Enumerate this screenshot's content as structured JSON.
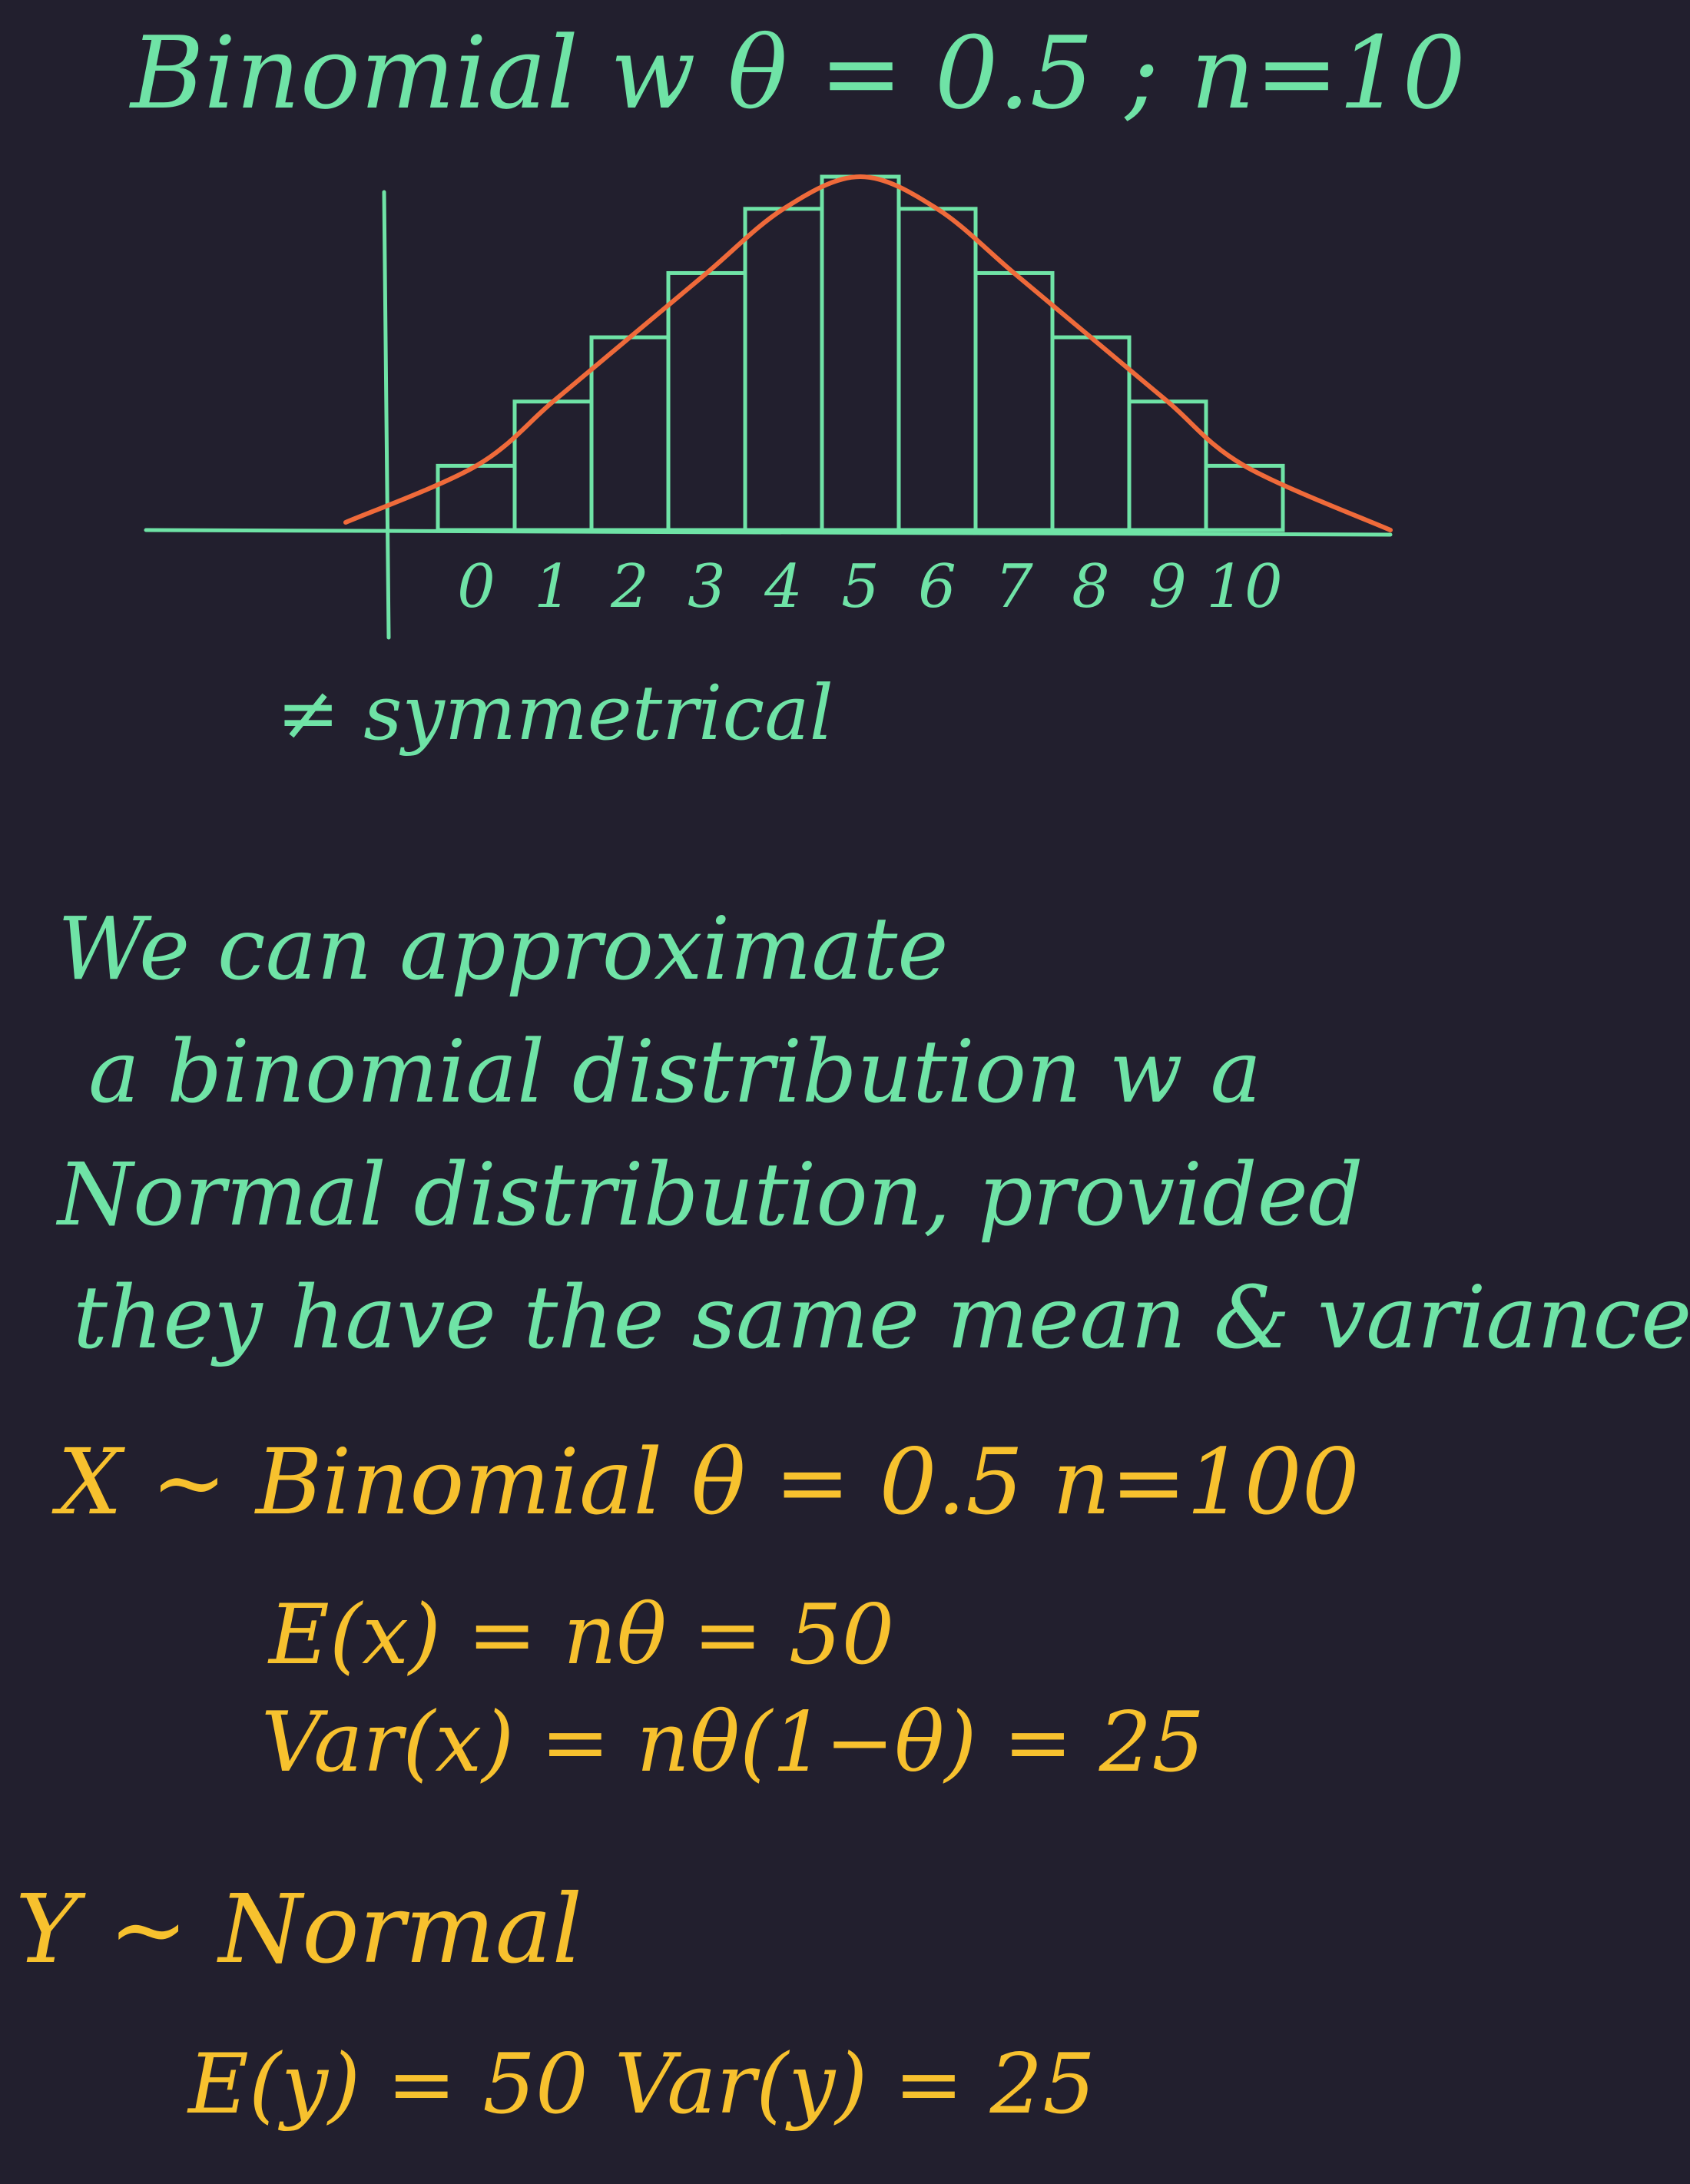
{
  "title": "Binomial w θ = 0.5 ; n=10",
  "chart_data": {
    "type": "bar",
    "categories": [
      "0",
      "1",
      "2",
      "3",
      "4",
      "5",
      "6",
      "7",
      "8",
      "9",
      "10"
    ],
    "values": [
      1,
      2,
      3,
      4,
      5,
      5.5,
      5,
      4,
      3,
      2,
      1
    ],
    "curve_overlay": true,
    "colors": {
      "bars": "#6fe3a6",
      "curve": "#ef6a3a"
    }
  },
  "note": "≠ symmetrical",
  "paragraph": {
    "line1": "We can approximate",
    "line2": "a binomial distribution w a",
    "line3": "Normal distribution, provided",
    "line4": "they have the same mean & variance"
  },
  "x_section": {
    "heading": "X ~ Binomial   θ = 0.5  n=100",
    "expectation": "E(x) = nθ = 50",
    "variance": "Var(x) = nθ(1−θ) = 25"
  },
  "y_section": {
    "heading": "Y ~ Normal",
    "values": "E(y) = 50   Var(y) = 25"
  },
  "colors": {
    "background": "#221f2e",
    "green_ink": "#6fe3a6",
    "yellow_ink": "#f7c12e",
    "orange_ink": "#ef6a3a"
  }
}
